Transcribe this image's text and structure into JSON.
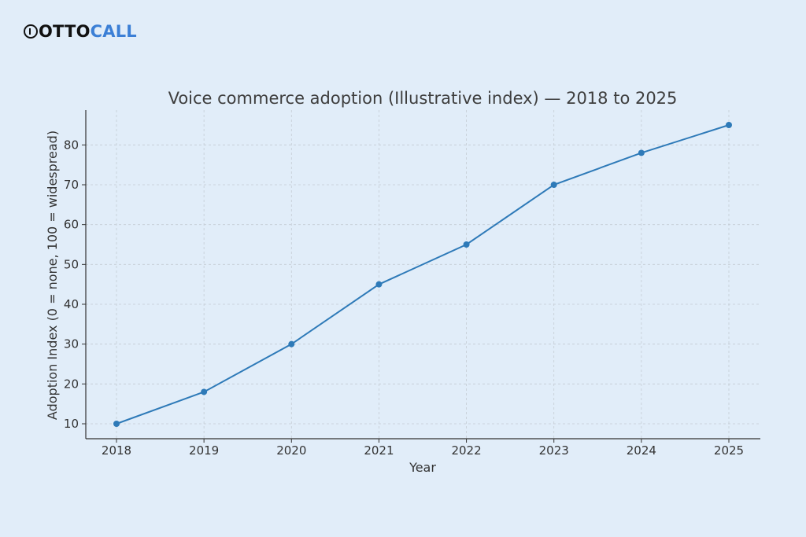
{
  "brand": {
    "mark": "O",
    "part1": "OTTO",
    "part2": " CALL"
  },
  "chart_data": {
    "type": "line",
    "title": "Voice commerce adoption (Illustrative index) — 2018 to 2025",
    "xlabel": "Year",
    "ylabel": "Adoption Index (0 = none, 100 = widespread)",
    "x": [
      "2018",
      "2019",
      "2020",
      "2021",
      "2022",
      "2023",
      "2024",
      "2025"
    ],
    "series": [
      {
        "values": [
          10,
          18,
          30,
          45,
          55,
          70,
          78,
          85
        ]
      }
    ],
    "yticks": [
      10,
      20,
      30,
      40,
      50,
      60,
      70,
      80
    ],
    "ylim": [
      6.25,
      88.75
    ],
    "grid": true,
    "line_color": "#2e7ab8",
    "grid_color": "#c4ccd4",
    "axis_color": "#333333"
  }
}
